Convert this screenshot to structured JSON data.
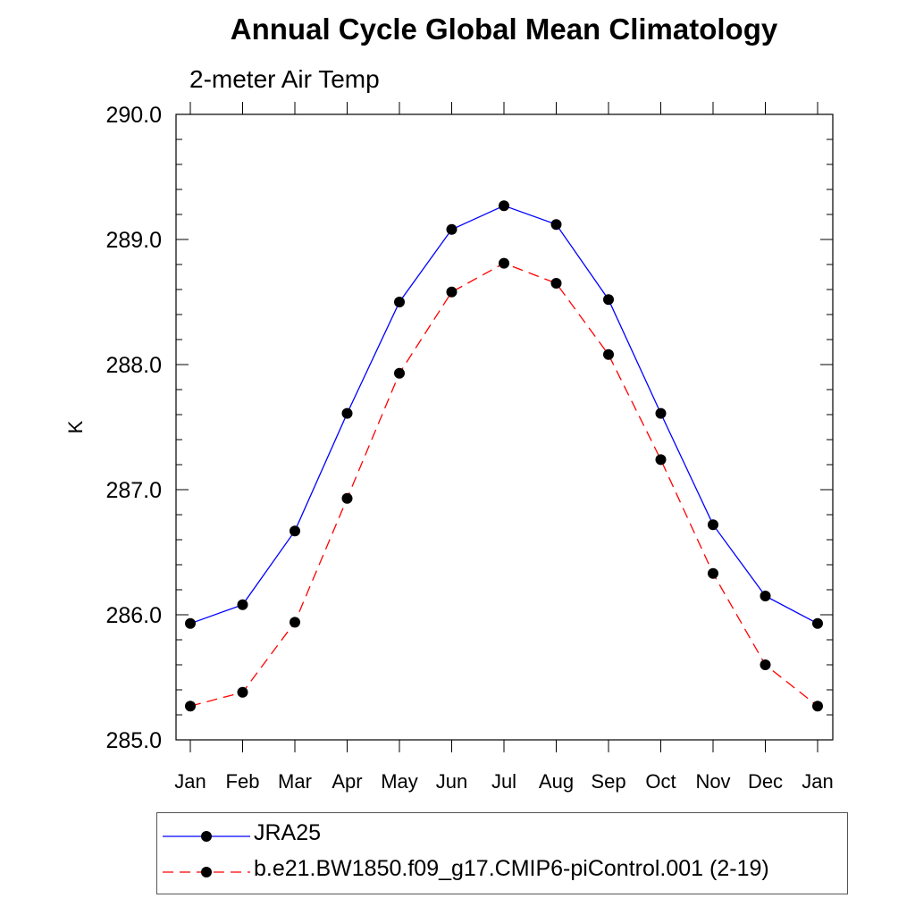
{
  "chart_data": {
    "type": "line",
    "title": "Annual Cycle Global Mean Climatology",
    "subtitle": "2-meter Air Temp",
    "xlabel": "",
    "ylabel": "K",
    "categories": [
      "Jan",
      "Feb",
      "Mar",
      "Apr",
      "May",
      "Jun",
      "Jul",
      "Aug",
      "Sep",
      "Oct",
      "Nov",
      "Dec",
      "Jan"
    ],
    "ylim": [
      285.0,
      290.0
    ],
    "yticks": [
      "285.0",
      "286.0",
      "287.0",
      "288.0",
      "289.0",
      "290.0"
    ],
    "grid": false,
    "legend_position": "bottom",
    "series": [
      {
        "name": "JRA25",
        "color": "#0000ff",
        "line_style": "solid",
        "marker": "filled-circle",
        "values": [
          285.93,
          286.08,
          286.67,
          287.61,
          288.5,
          289.08,
          289.27,
          289.12,
          288.52,
          287.61,
          286.72,
          286.15,
          285.93
        ]
      },
      {
        "name": "b.e21.BW1850.f09_g17.CMIP6-piControl.001 (2-19)",
        "color": "#ff0000",
        "line_style": "dashed",
        "marker": "filled-circle",
        "values": [
          285.27,
          285.38,
          285.94,
          286.93,
          287.93,
          288.58,
          288.81,
          288.65,
          288.08,
          287.24,
          286.33,
          285.6,
          285.27
        ]
      }
    ]
  }
}
